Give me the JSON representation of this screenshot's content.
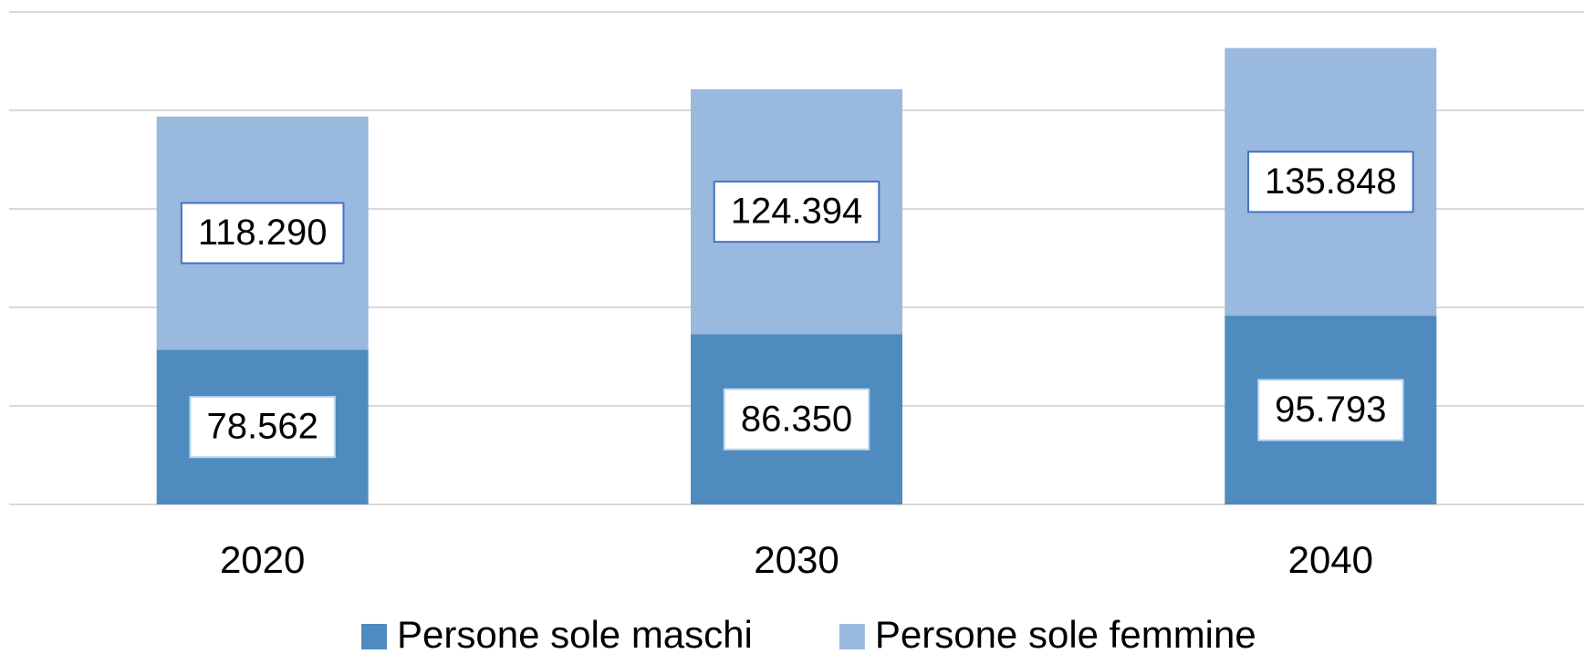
{
  "chart_data": {
    "type": "stacked_bar",
    "categories": [
      "2020",
      "2030",
      "2040"
    ],
    "series": [
      {
        "name": "Persone sole maschi",
        "color": "#4f8bbf",
        "values": [
          78562,
          86350,
          95793
        ],
        "value_labels": [
          "78.562",
          "86.350",
          "95.793"
        ]
      },
      {
        "name": "Persone sole femmine",
        "color": "#99b9df",
        "values": [
          118290,
          124394,
          135848
        ],
        "value_labels": [
          "118.290",
          "124.394",
          "135.848"
        ]
      }
    ],
    "ylim": [
      0,
      250000
    ],
    "yticks": [
      0,
      50000,
      100000,
      150000,
      200000,
      250000
    ],
    "grid": true,
    "legend": "bottom"
  }
}
